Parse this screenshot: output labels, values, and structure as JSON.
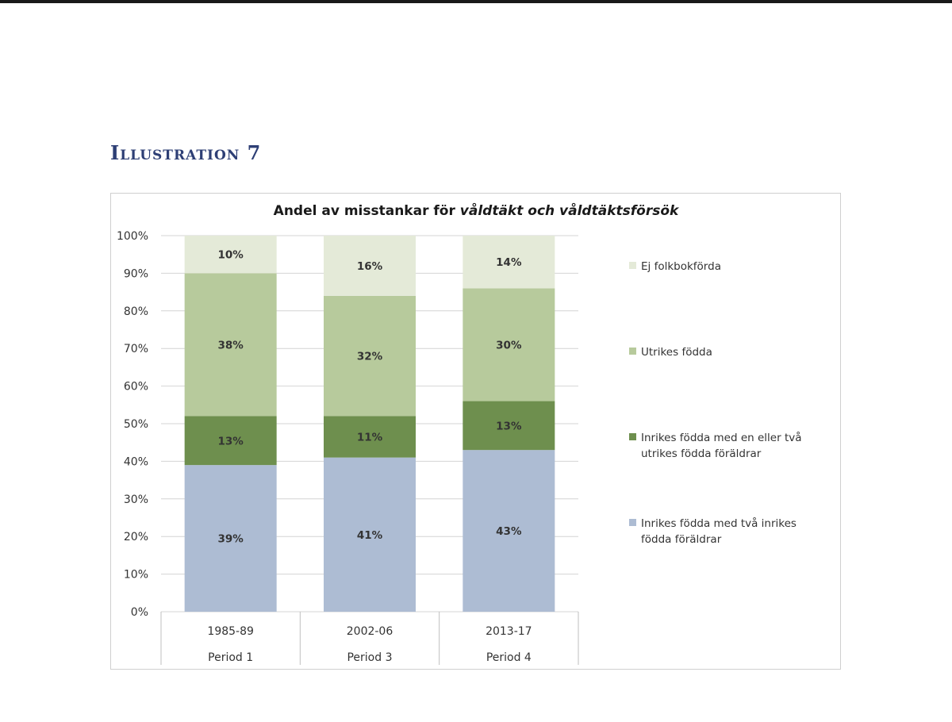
{
  "page": {
    "heading": "Illustration 7"
  },
  "chart_data": {
    "type": "bar",
    "stacked": true,
    "title_plain": "Andel av misstankar för",
    "title_italic": "våldtäkt och våldtäktsförsök",
    "categories": [
      "1985-89",
      "2002-06",
      "2013-17"
    ],
    "category_groups": [
      "Period 1",
      "Period 3",
      "Period 4"
    ],
    "ylim": [
      0,
      100
    ],
    "yticks": [
      "0%",
      "10%",
      "20%",
      "30%",
      "40%",
      "50%",
      "60%",
      "70%",
      "80%",
      "90%",
      "100%"
    ],
    "series": [
      {
        "name": "Inrikes födda med två inrikes födda föräldrar",
        "values": [
          39,
          41,
          43
        ],
        "labels": [
          "39%",
          "41%",
          "43%"
        ],
        "color": "#adbcd3"
      },
      {
        "name": "Inrikes födda med en eller två utrikes födda föräldrar",
        "values": [
          13,
          11,
          13
        ],
        "labels": [
          "13%",
          "11%",
          "13%"
        ],
        "color": "#6e8f4e"
      },
      {
        "name": "Utrikes födda",
        "values": [
          38,
          32,
          30
        ],
        "labels": [
          "38%",
          "32%",
          "30%"
        ],
        "color": "#b7ca9c"
      },
      {
        "name": "Ej folkbokförda",
        "values": [
          10,
          16,
          14
        ],
        "labels": [
          "10%",
          "16%",
          "14%"
        ],
        "color": "#e4ead8"
      }
    ]
  }
}
